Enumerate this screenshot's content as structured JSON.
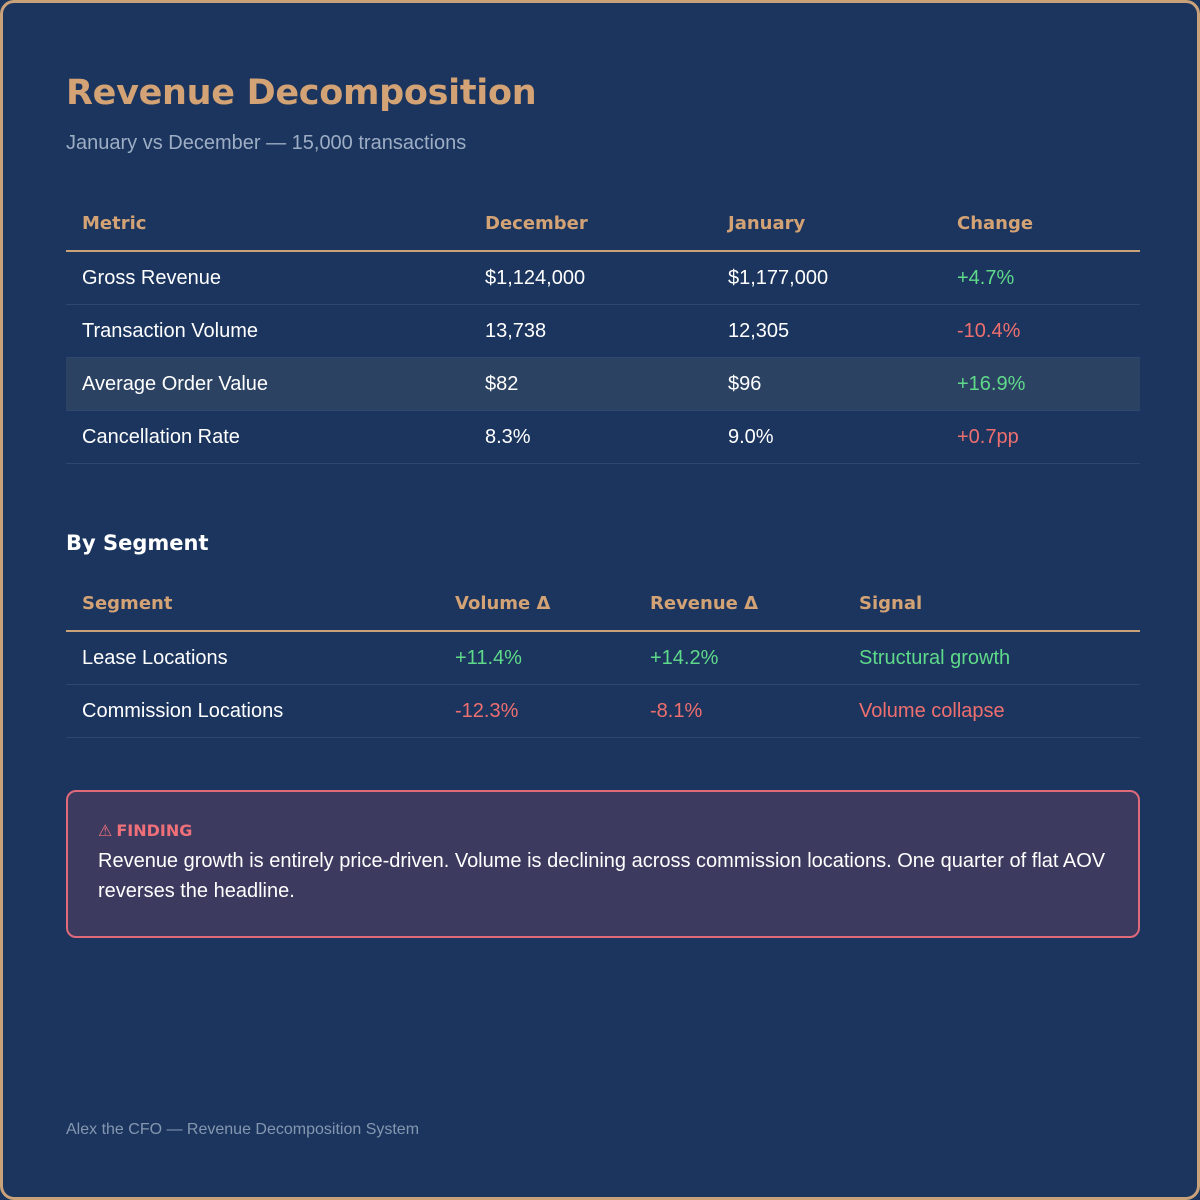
{
  "header": {
    "title": "Revenue Decomposition",
    "subtitle": "January vs December — 15,000 transactions"
  },
  "summary_table": {
    "columns": [
      "Metric",
      "December",
      "January",
      "Change"
    ],
    "rows": [
      {
        "metric": "Gross Revenue",
        "december": "$1,124,000",
        "january": "$1,177,000",
        "change": "+4.7%"
      },
      {
        "metric": "Transaction Volume",
        "december": "13,738",
        "january": "12,305",
        "change": "-10.4%"
      },
      {
        "metric": "Average Order Value",
        "december": "$82",
        "january": "$96",
        "change": "+16.9%"
      },
      {
        "metric": "Cancellation Rate",
        "december": "8.3%",
        "january": "9.0%",
        "change": "+0.7pp"
      }
    ]
  },
  "segment_section": {
    "title": "By Segment",
    "columns": [
      "Segment",
      "Volume Δ",
      "Revenue Δ",
      "Signal"
    ],
    "rows": [
      {
        "segment": "Lease Locations",
        "volume": "+11.4%",
        "revenue": "+14.2%",
        "signal": "Structural growth"
      },
      {
        "segment": "Commission Locations",
        "volume": "-12.3%",
        "revenue": "-8.1%",
        "signal": "Volume collapse"
      }
    ]
  },
  "finding": {
    "icon": "warning-icon",
    "icon_glyph": "⚠",
    "label": "FINDING",
    "text": "Revenue growth is entirely price-driven. Volume is declining across commission locations. One quarter of flat AOV reverses the headline."
  },
  "footer": {
    "text": "Alex the CFO — Revenue Decomposition System"
  },
  "colors": {
    "background": "#1b355e",
    "accent": "#d3a275",
    "positive": "#5fd98a",
    "negative": "#ee6f6f",
    "finding_border": "#e0697a"
  }
}
